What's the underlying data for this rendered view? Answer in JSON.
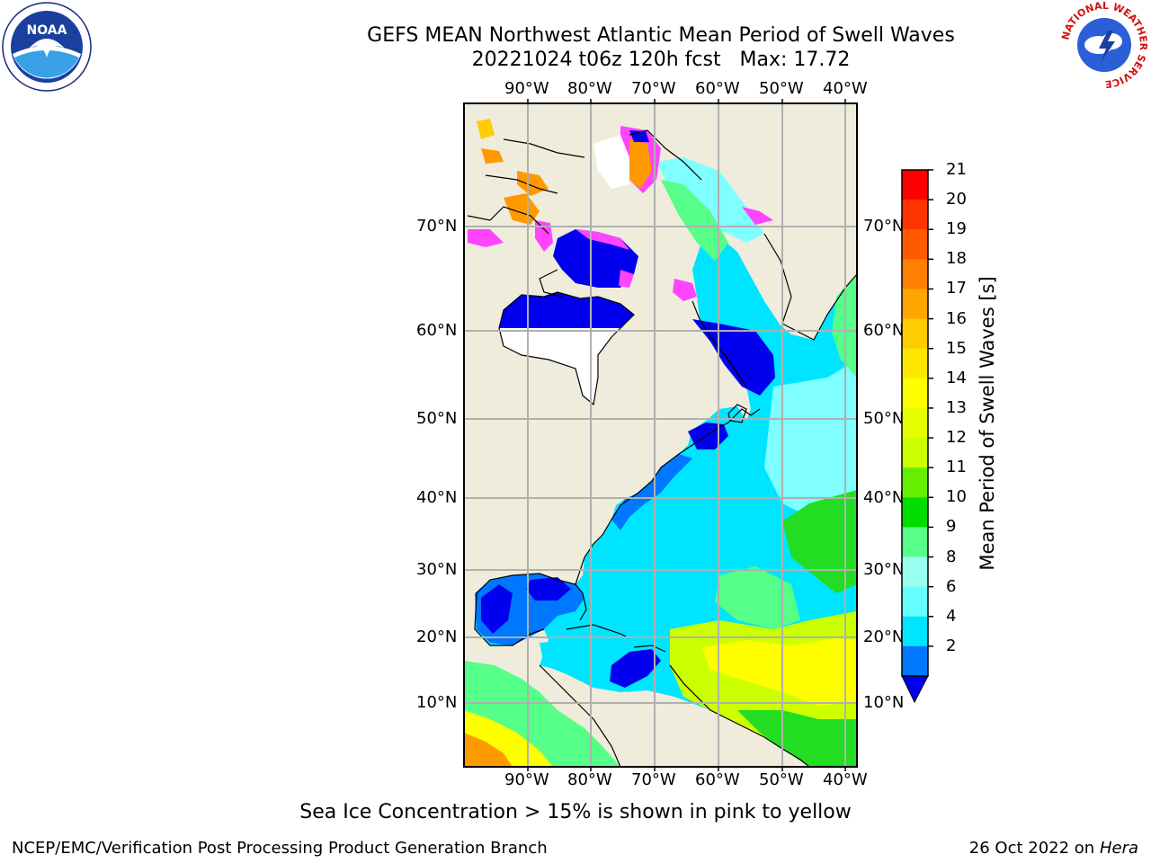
{
  "header": {
    "title_line1": "GEFS MEAN Northwest Atlantic Mean Period of Swell Waves",
    "title_line2": "20221024 t06z 120h fcst   Max: 17.72"
  },
  "map": {
    "lon_labels": [
      "90°W",
      "80°W",
      "70°W",
      "60°W",
      "50°W",
      "40°W"
    ],
    "lat_labels": [
      "70°N",
      "60°N",
      "50°N",
      "40°N",
      "30°N",
      "20°N",
      "10°N"
    ],
    "land_color": "#efecdc",
    "ocean_colors": {
      "blue": "#0000ee",
      "azure": "#0077ff",
      "cyan": "#00e5ff",
      "light_cyan": "#7fffff",
      "green": "#22dd22",
      "light_green": "#55ff88",
      "yellow_green": "#ccff00",
      "yellow": "#ffff00",
      "orange": "#ff9900",
      "magenta": "#ff44ff"
    }
  },
  "colorbar": {
    "label": "Mean Period of Swell Waves [s]",
    "ticks": [
      "21",
      "20",
      "19",
      "18",
      "17",
      "16",
      "15",
      "14",
      "13",
      "12",
      "11",
      "10",
      "9",
      "8",
      "6",
      "4",
      "2"
    ],
    "colors": [
      "#ff0000",
      "#ff3300",
      "#ff5a00",
      "#ff7f00",
      "#ffa500",
      "#ffcc00",
      "#ffe600",
      "#ffff00",
      "#e6ff00",
      "#ccff00",
      "#66ee00",
      "#00dd00",
      "#55ff88",
      "#99ffee",
      "#66ffff",
      "#00e5ff",
      "#0077ff"
    ],
    "extend_color": "#0000ee"
  },
  "notes": {
    "sea_ice": "Sea Ice Concentration > 15% is shown in pink to yellow"
  },
  "footer": {
    "left": "NCEP/EMC/Verification Post Processing Product Generation Branch",
    "right_date": "26 Oct 2022 on ",
    "right_host": "Hera"
  },
  "logos": {
    "noaa": "NOAA",
    "nws_ring": "NATIONAL WEATHER SERVICE"
  }
}
